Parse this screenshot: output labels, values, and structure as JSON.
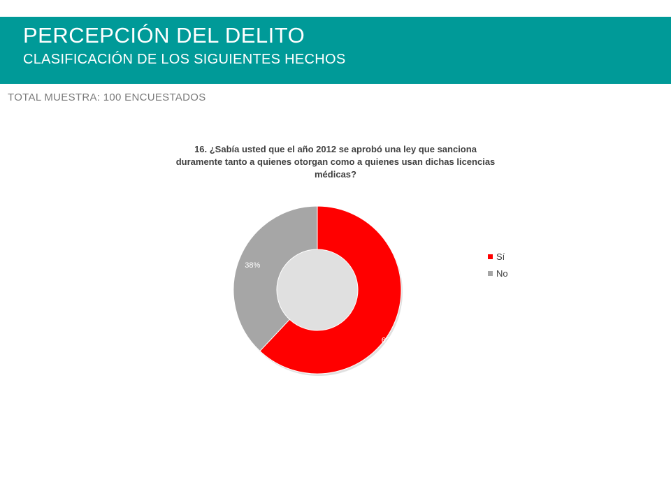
{
  "header": {
    "title": "PERCEPCIÓN DEL DELITO",
    "subtitle": "CLASIFICACIÓN DE LOS SIGUIENTES HECHOS",
    "band_color": "#009a98"
  },
  "sample_note": "TOTAL MUESTRA: 100 ENCUESTADOS",
  "chart_data": {
    "type": "pie",
    "variant": "donut",
    "title_lines": [
      "16. ¿Sabía usted que el año 2012 se aprobó una ley que sanciona",
      "duramente tanto a quienes otorgan como a quienes usan dichas licencias",
      "médicas?"
    ],
    "categories": [
      "Sí",
      "No"
    ],
    "values": [
      62,
      38
    ],
    "data_labels": [
      "62%",
      "38%"
    ],
    "colors": [
      "#ff0000",
      "#a6a6a6"
    ],
    "legend_position": "right"
  }
}
